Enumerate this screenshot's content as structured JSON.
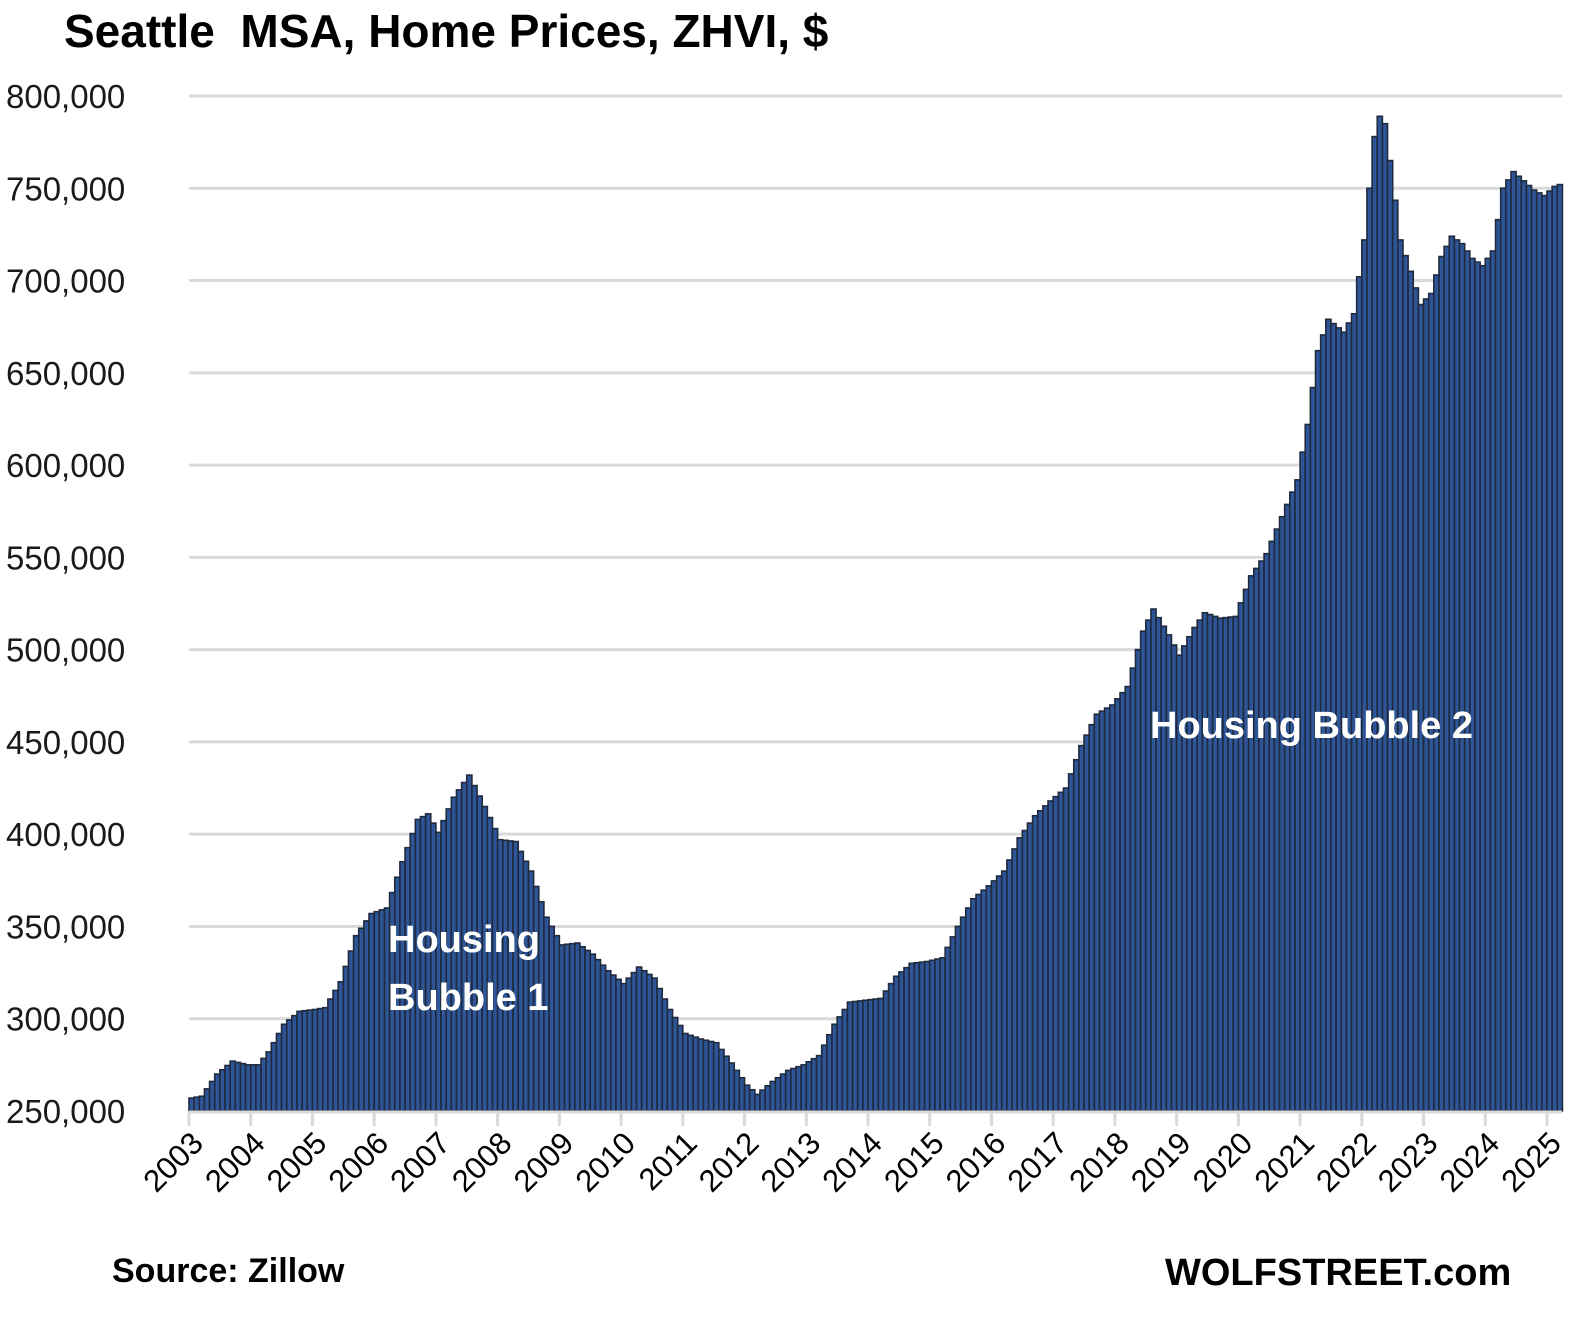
{
  "chart_data": {
    "type": "bar",
    "title": "Seattle  MSA, Home Prices, ZHVI, $",
    "xlabel": "",
    "ylabel": "",
    "frequency": "monthly",
    "start": "2003-01",
    "ylim": [
      250000,
      800000
    ],
    "yticks": [
      250000,
      300000,
      350000,
      400000,
      450000,
      500000,
      550000,
      600000,
      650000,
      700000,
      750000,
      800000
    ],
    "ytick_labels": [
      "250,000",
      "300,000",
      "350,000",
      "400,000",
      "450,000",
      "500,000",
      "550,000",
      "600,000",
      "650,000",
      "700,000",
      "750,000",
      "800,000"
    ],
    "xtick_labels": [
      "2003",
      "2004",
      "2005",
      "2006",
      "2007",
      "2008",
      "2009",
      "2010",
      "2011",
      "2012",
      "2013",
      "2014",
      "2015",
      "2016",
      "2017",
      "2018",
      "2019",
      "2020",
      "2021",
      "2022",
      "2023",
      "2024",
      "2025"
    ],
    "grid": "horizontal",
    "legend": "none",
    "bar_color": "#2e5597",
    "bar_edge_color": "#1f2a3d",
    "annotations": [
      {
        "text_lines": [
          "Housing",
          "Bubble 1"
        ],
        "near": "2007"
      },
      {
        "text_lines": [
          "Housing Bubble 2"
        ],
        "near": "2018-2023"
      }
    ],
    "anchors": [
      [
        "2003-01",
        257000
      ],
      [
        "2003-03",
        258000
      ],
      [
        "2003-06",
        270000
      ],
      [
        "2003-09",
        277000
      ],
      [
        "2003-12",
        275000
      ],
      [
        "2004-02",
        275000
      ],
      [
        "2004-04",
        282000
      ],
      [
        "2004-07",
        297000
      ],
      [
        "2004-10",
        304000
      ],
      [
        "2005-01",
        305000
      ],
      [
        "2005-03",
        306000
      ],
      [
        "2005-06",
        320000
      ],
      [
        "2005-09",
        345000
      ],
      [
        "2005-12",
        357000
      ],
      [
        "2006-03",
        360000
      ],
      [
        "2006-06",
        385000
      ],
      [
        "2006-09",
        408000
      ],
      [
        "2006-11",
        411000
      ],
      [
        "2007-01",
        401000
      ],
      [
        "2007-04",
        420000
      ],
      [
        "2007-07",
        432000
      ],
      [
        "2007-10",
        415000
      ],
      [
        "2008-01",
        397000
      ],
      [
        "2008-04",
        396000
      ],
      [
        "2008-07",
        380000
      ],
      [
        "2008-10",
        355000
      ],
      [
        "2009-01",
        340000
      ],
      [
        "2009-04",
        341000
      ],
      [
        "2009-07",
        335000
      ],
      [
        "2009-10",
        326000
      ],
      [
        "2010-01",
        319000
      ],
      [
        "2010-04",
        328000
      ],
      [
        "2010-07",
        322000
      ],
      [
        "2010-10",
        305000
      ],
      [
        "2011-01",
        292000
      ],
      [
        "2011-04",
        289000
      ],
      [
        "2011-07",
        287000
      ],
      [
        "2011-10",
        276000
      ],
      [
        "2012-01",
        264000
      ],
      [
        "2012-03",
        259000
      ],
      [
        "2012-06",
        266000
      ],
      [
        "2012-09",
        272000
      ],
      [
        "2012-12",
        275000
      ],
      [
        "2013-03",
        280000
      ],
      [
        "2013-06",
        297000
      ],
      [
        "2013-09",
        309000
      ],
      [
        "2013-12",
        310000
      ],
      [
        "2014-03",
        311000
      ],
      [
        "2014-06",
        323000
      ],
      [
        "2014-09",
        330000
      ],
      [
        "2014-12",
        331000
      ],
      [
        "2015-03",
        333000
      ],
      [
        "2015-06",
        350000
      ],
      [
        "2015-09",
        365000
      ],
      [
        "2015-12",
        372000
      ],
      [
        "2016-03",
        380000
      ],
      [
        "2016-06",
        398000
      ],
      [
        "2016-09",
        410000
      ],
      [
        "2016-12",
        418000
      ],
      [
        "2017-03",
        425000
      ],
      [
        "2017-06",
        448000
      ],
      [
        "2017-09",
        465000
      ],
      [
        "2017-12",
        470000
      ],
      [
        "2018-03",
        480000
      ],
      [
        "2018-06",
        510000
      ],
      [
        "2018-08",
        522000
      ],
      [
        "2018-11",
        508000
      ],
      [
        "2019-01",
        497000
      ],
      [
        "2019-04",
        512000
      ],
      [
        "2019-06",
        520000
      ],
      [
        "2019-09",
        517000
      ],
      [
        "2019-12",
        518000
      ],
      [
        "2020-03",
        540000
      ],
      [
        "2020-06",
        552000
      ],
      [
        "2020-09",
        572000
      ],
      [
        "2020-12",
        592000
      ],
      [
        "2021-02",
        622000
      ],
      [
        "2021-04",
        662000
      ],
      [
        "2021-06",
        679000
      ],
      [
        "2021-09",
        672000
      ],
      [
        "2021-11",
        682000
      ],
      [
        "2022-01",
        722000
      ],
      [
        "2022-03",
        778000
      ],
      [
        "2022-04",
        789000
      ],
      [
        "2022-05",
        785000
      ],
      [
        "2022-06",
        765000
      ],
      [
        "2022-08",
        722000
      ],
      [
        "2022-10",
        705000
      ],
      [
        "2022-12",
        687000
      ],
      [
        "2023-02",
        693000
      ],
      [
        "2023-04",
        713000
      ],
      [
        "2023-06",
        724000
      ],
      [
        "2023-08",
        720000
      ],
      [
        "2023-10",
        712000
      ],
      [
        "2023-12",
        708000
      ],
      [
        "2024-02",
        716000
      ],
      [
        "2024-04",
        750000
      ],
      [
        "2024-06",
        759000
      ],
      [
        "2024-08",
        754000
      ],
      [
        "2024-10",
        749000
      ],
      [
        "2024-12",
        746000
      ],
      [
        "2025-02",
        751000
      ],
      [
        "2025-03",
        752000
      ]
    ]
  },
  "footer": {
    "source": "Source: Zillow",
    "brand": "WOLFSTREET.com"
  }
}
